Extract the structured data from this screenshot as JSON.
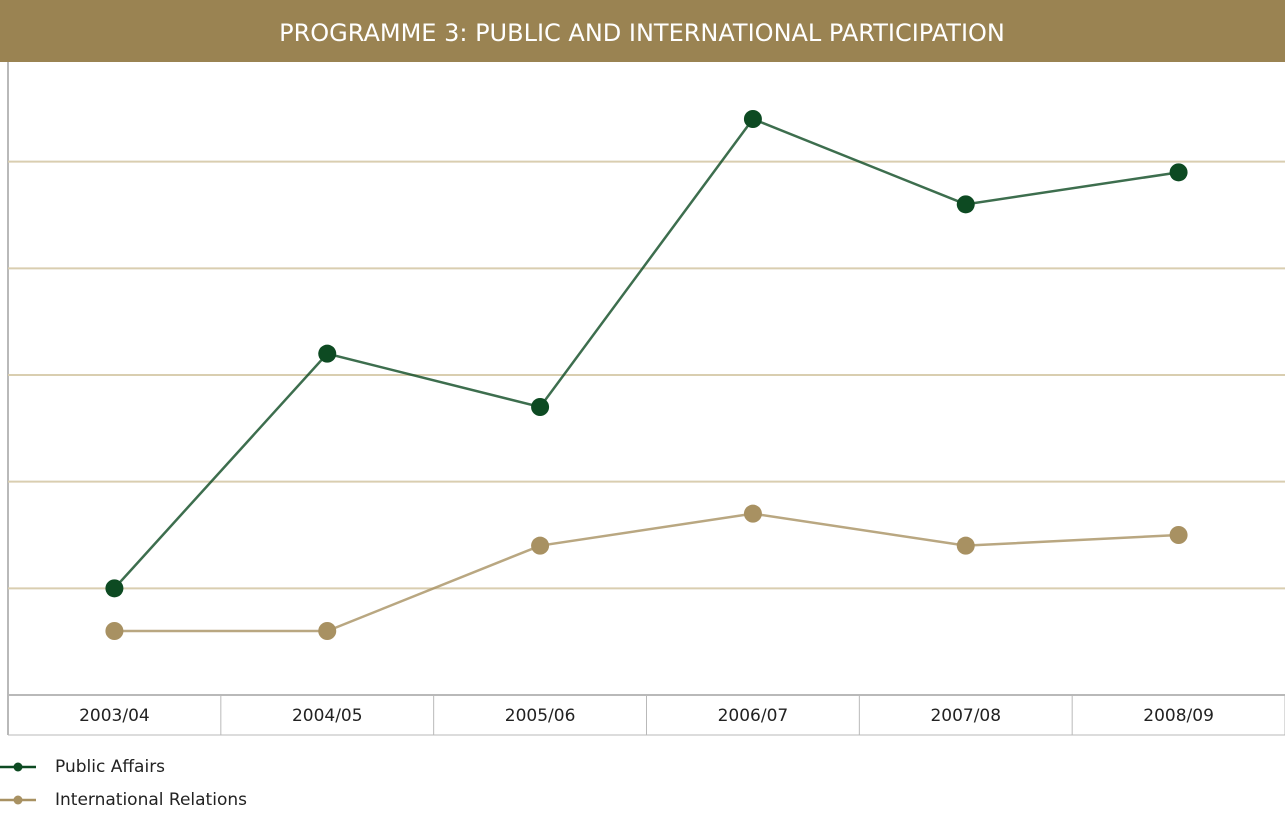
{
  "chart_data": {
    "type": "line",
    "title": "PROGRAMME 3: PUBLIC AND INTERNATIONAL PARTICIPATION",
    "categories": [
      "2003/04",
      "2004/05",
      "2005/06",
      "2006/07",
      "2007/08",
      "2008/09"
    ],
    "series": [
      {
        "name": "Public Affairs",
        "color": "#0d4a22",
        "values": [
          1.0,
          3.2,
          2.7,
          5.4,
          4.6,
          4.9
        ]
      },
      {
        "name": "International Relations",
        "color": "#a89162",
        "values": [
          0.6,
          0.6,
          1.4,
          1.7,
          1.4,
          1.5
        ]
      }
    ],
    "ylim": [
      0,
      6
    ],
    "yticks": [
      1,
      2,
      3,
      4,
      5
    ],
    "grid": true
  }
}
